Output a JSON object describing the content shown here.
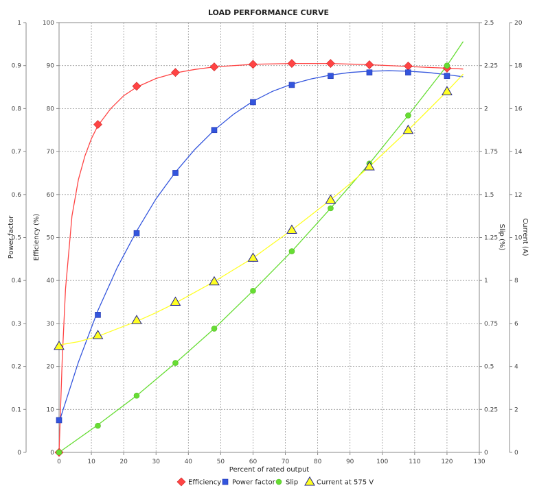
{
  "chart_data": {
    "type": "line",
    "title": "LOAD PERFORMANCE CURVE",
    "xlabel": "Percent of rated output",
    "xlim": [
      0,
      130
    ],
    "xticks": [
      "0",
      "10",
      "20",
      "30",
      "40",
      "50",
      "60",
      "70",
      "80",
      "90",
      "100",
      "110",
      "120",
      "130"
    ],
    "grid": true,
    "legend_position": "bottom",
    "axes": {
      "power_factor": {
        "label": "Power factor",
        "side": "left",
        "range": [
          0,
          1
        ],
        "ticks": [
          "0",
          "0.1",
          "0.2",
          "0.3",
          "0.4",
          "0.5",
          "0.6",
          "0.7",
          "0.8",
          "0.9",
          "1"
        ]
      },
      "efficiency": {
        "label": "Efficiency (%)",
        "side": "left",
        "range": [
          0,
          100
        ],
        "ticks": [
          "0",
          "10",
          "20",
          "30",
          "40",
          "50",
          "60",
          "70",
          "80",
          "90",
          "100"
        ]
      },
      "slip": {
        "label": "Slip (%)",
        "side": "right",
        "range": [
          0,
          2.5
        ],
        "ticks": [
          "0",
          "0.25",
          "0.5",
          "0.75",
          "1",
          "1.25",
          "1.5",
          "1.75",
          "2",
          "2.25",
          "2.5"
        ]
      },
      "current": {
        "label": "Current (A)",
        "side": "right",
        "range": [
          0,
          20
        ],
        "ticks": [
          "0",
          "2",
          "4",
          "6",
          "8",
          "10",
          "12",
          "14",
          "16",
          "18",
          "20"
        ]
      }
    },
    "series": [
      {
        "name": "Efficiency",
        "axis": "efficiency",
        "color": "#ff4444",
        "marker": "diamond",
        "points": [
          [
            0,
            0
          ],
          [
            12,
            76.3
          ],
          [
            24,
            85.2
          ],
          [
            36,
            88.4
          ],
          [
            48,
            89.7
          ],
          [
            60,
            90.3
          ],
          [
            72,
            90.5
          ],
          [
            84,
            90.5
          ],
          [
            96,
            90.2
          ],
          [
            108,
            89.9
          ],
          [
            120,
            89.4
          ]
        ],
        "fit": [
          [
            0,
            0
          ],
          [
            1,
            22
          ],
          [
            2,
            38
          ],
          [
            4,
            55
          ],
          [
            6,
            63.5
          ],
          [
            8,
            69
          ],
          [
            10,
            73
          ],
          [
            12,
            76
          ],
          [
            16,
            80
          ],
          [
            20,
            83
          ],
          [
            24,
            85
          ],
          [
            30,
            87
          ],
          [
            36,
            88.3
          ],
          [
            42,
            89.1
          ],
          [
            48,
            89.7
          ],
          [
            60,
            90.3
          ],
          [
            72,
            90.5
          ],
          [
            84,
            90.5
          ],
          [
            96,
            90.2
          ],
          [
            108,
            89.8
          ],
          [
            120,
            89.4
          ],
          [
            125,
            89.2
          ]
        ]
      },
      {
        "name": "Power factor",
        "axis": "power_factor",
        "color": "#3355dd",
        "marker": "square",
        "points": [
          [
            0,
            0.075
          ],
          [
            12,
            0.32
          ],
          [
            24,
            0.51
          ],
          [
            36,
            0.65
          ],
          [
            48,
            0.75
          ],
          [
            60,
            0.815
          ],
          [
            72,
            0.855
          ],
          [
            84,
            0.876
          ],
          [
            96,
            0.884
          ],
          [
            108,
            0.884
          ],
          [
            120,
            0.876
          ]
        ],
        "fit": [
          [
            0,
            0.07
          ],
          [
            6,
            0.21
          ],
          [
            12,
            0.33
          ],
          [
            18,
            0.43
          ],
          [
            24,
            0.515
          ],
          [
            30,
            0.59
          ],
          [
            36,
            0.652
          ],
          [
            42,
            0.705
          ],
          [
            48,
            0.75
          ],
          [
            54,
            0.787
          ],
          [
            60,
            0.817
          ],
          [
            66,
            0.84
          ],
          [
            72,
            0.857
          ],
          [
            78,
            0.869
          ],
          [
            84,
            0.878
          ],
          [
            90,
            0.884
          ],
          [
            96,
            0.887
          ],
          [
            102,
            0.888
          ],
          [
            108,
            0.887
          ],
          [
            114,
            0.884
          ],
          [
            120,
            0.879
          ],
          [
            125,
            0.874
          ]
        ]
      },
      {
        "name": "Slip",
        "axis": "slip",
        "color": "#66dd33",
        "marker": "circle",
        "points": [
          [
            0,
            0
          ],
          [
            12,
            0.155
          ],
          [
            24,
            0.33
          ],
          [
            36,
            0.52
          ],
          [
            48,
            0.72
          ],
          [
            60,
            0.94
          ],
          [
            72,
            1.17
          ],
          [
            84,
            1.42
          ],
          [
            96,
            1.68
          ],
          [
            108,
            1.96
          ],
          [
            120,
            2.25
          ]
        ],
        "fit": [
          [
            0,
            0
          ],
          [
            12,
            0.16
          ],
          [
            24,
            0.33
          ],
          [
            36,
            0.52
          ],
          [
            48,
            0.72
          ],
          [
            60,
            0.94
          ],
          [
            72,
            1.17
          ],
          [
            84,
            1.42
          ],
          [
            96,
            1.68
          ],
          [
            108,
            1.96
          ],
          [
            120,
            2.25
          ],
          [
            125,
            2.39
          ]
        ]
      },
      {
        "name": "Current at 575 V",
        "axis": "current",
        "color": "#ffff22",
        "marker": "triangle",
        "points": [
          [
            0,
            4.95
          ],
          [
            12,
            5.45
          ],
          [
            24,
            6.15
          ],
          [
            36,
            7.0
          ],
          [
            48,
            7.95
          ],
          [
            60,
            9.05
          ],
          [
            72,
            10.35
          ],
          [
            84,
            11.75
          ],
          [
            96,
            13.3
          ],
          [
            108,
            15.0
          ],
          [
            120,
            16.8
          ]
        ],
        "fit": [
          [
            0,
            5.0
          ],
          [
            6,
            5.15
          ],
          [
            12,
            5.4
          ],
          [
            18,
            5.75
          ],
          [
            24,
            6.1
          ],
          [
            30,
            6.5
          ],
          [
            36,
            6.95
          ],
          [
            42,
            7.45
          ],
          [
            48,
            7.95
          ],
          [
            54,
            8.5
          ],
          [
            60,
            9.05
          ],
          [
            66,
            9.7
          ],
          [
            72,
            10.35
          ],
          [
            78,
            11.05
          ],
          [
            84,
            11.75
          ],
          [
            90,
            12.5
          ],
          [
            96,
            13.3
          ],
          [
            102,
            14.15
          ],
          [
            108,
            15.0
          ],
          [
            114,
            15.9
          ],
          [
            120,
            16.8
          ],
          [
            125,
            17.6
          ]
        ]
      }
    ]
  }
}
